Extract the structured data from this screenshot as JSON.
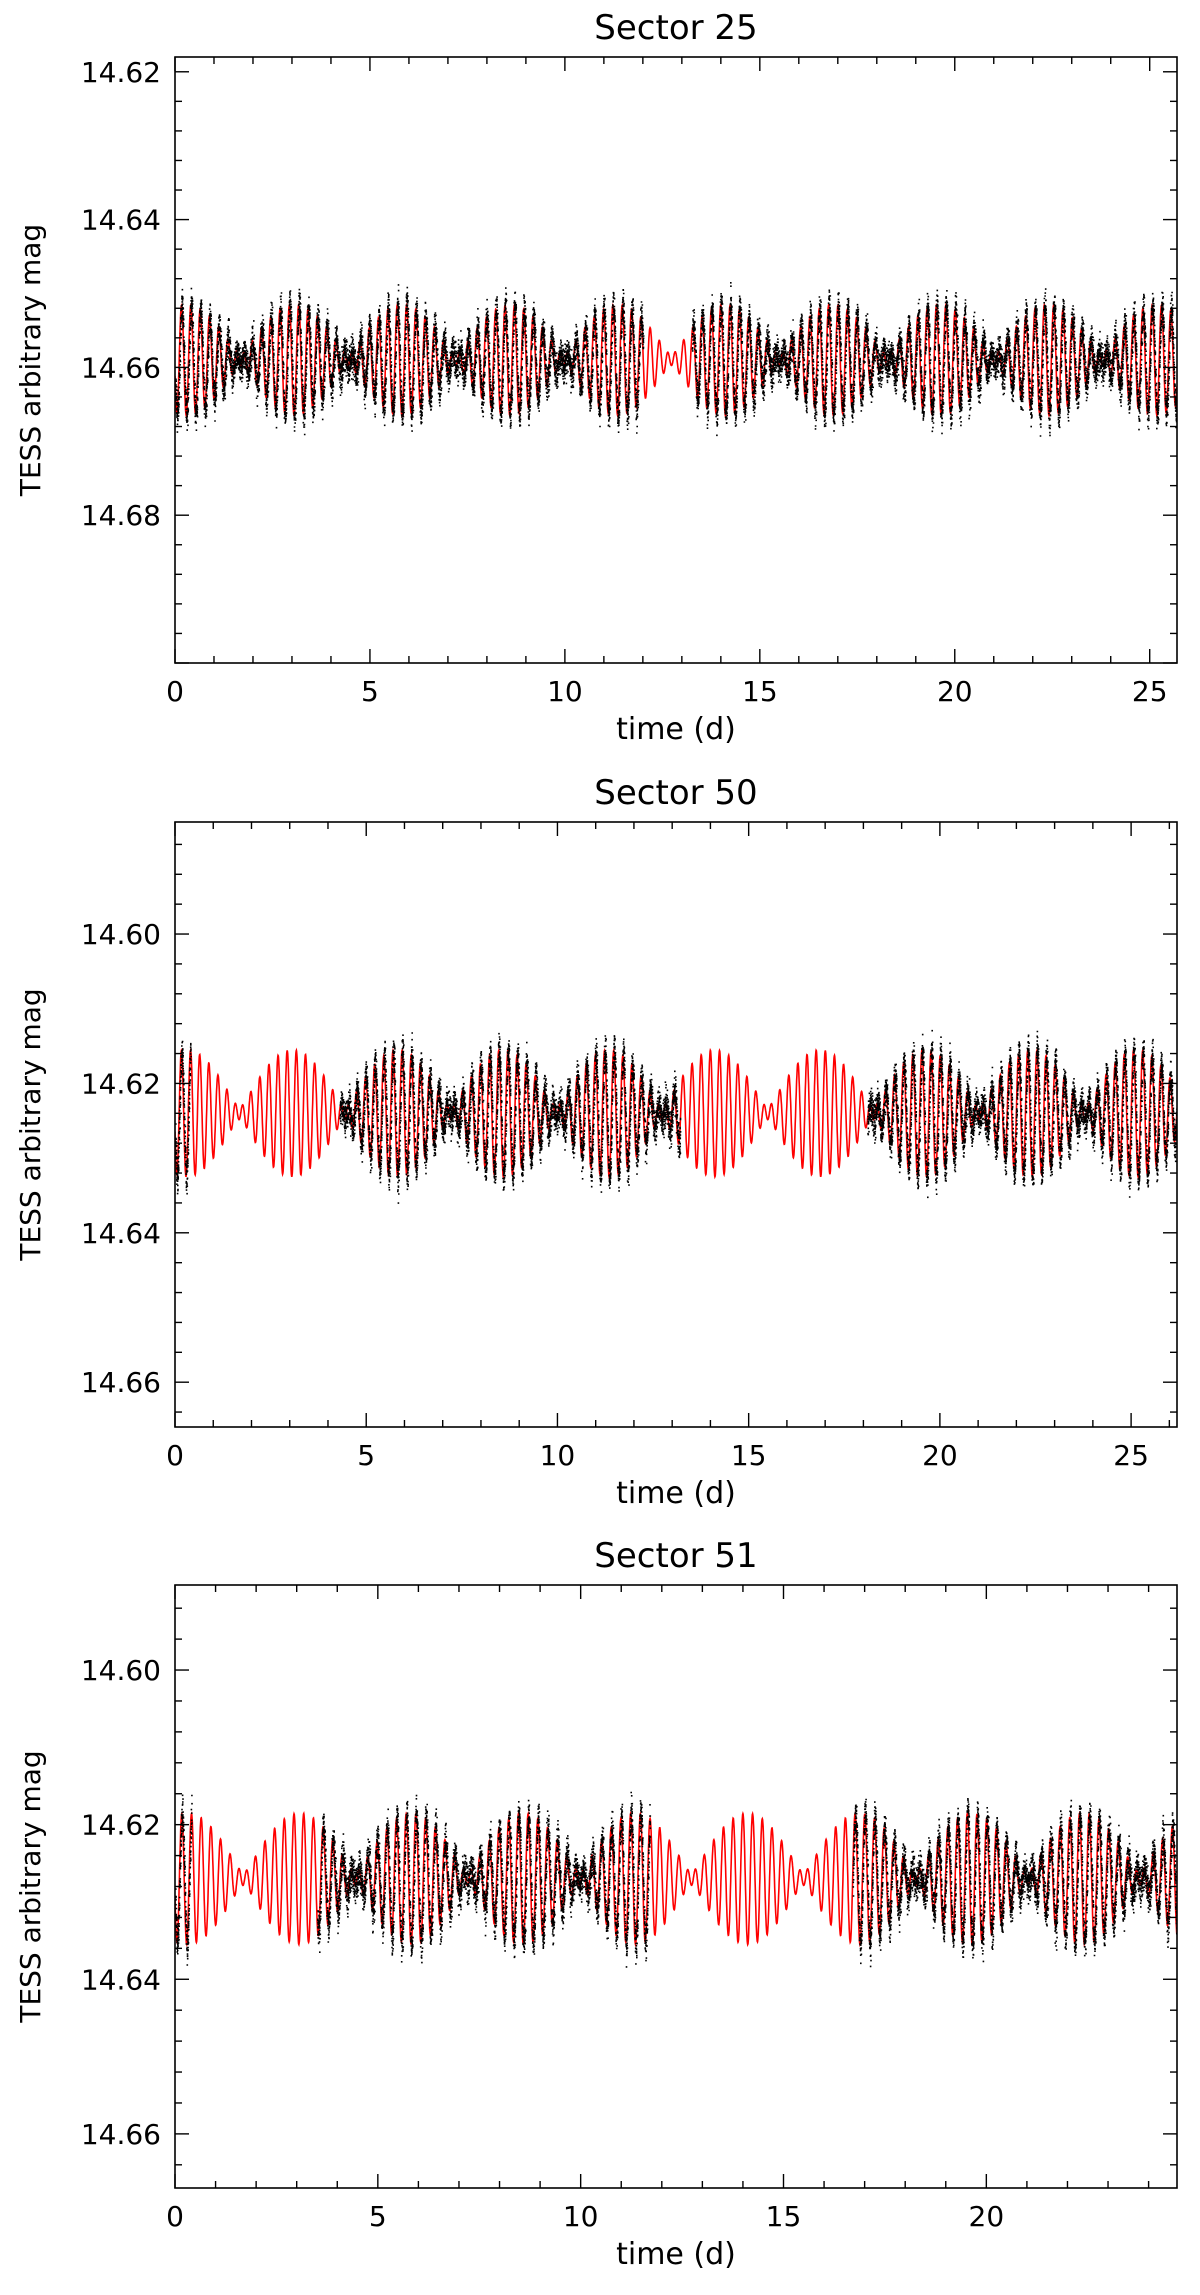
{
  "chart_data": [
    {
      "type": "scatter",
      "title": "Sector 25",
      "xlabel": "time (d)",
      "ylabel": "TESS arbitrary mag",
      "xlim": [
        0,
        25.7
      ],
      "ylim": [
        14.7,
        14.618
      ],
      "y_reversed": true,
      "x_ticks": [
        0,
        5,
        10,
        15,
        20,
        25
      ],
      "x_tick_labels": [
        "0",
        "5",
        "10",
        "15",
        "20",
        "25"
      ],
      "y_ticks": [
        14.62,
        14.64,
        14.66,
        14.68
      ],
      "y_tick_labels": [
        "14.62",
        "14.64",
        "14.66",
        "14.68"
      ],
      "grid": false,
      "series": [
        {
          "kind": "scatter",
          "color": "#000000",
          "segments": [
            [
              0,
              12.0
            ],
            [
              13.25,
              25.7
            ]
          ],
          "mean": 14.659,
          "amplitude": 0.0075,
          "noise": 0.0022
        },
        {
          "kind": "line",
          "color": "#ff0000",
          "x_range": [
            0,
            25.7
          ],
          "mean": 14.659,
          "amplitude": 0.0075
        }
      ]
    },
    {
      "type": "scatter",
      "title": "Sector 50",
      "xlabel": "time (d)",
      "ylabel": "TESS arbitrary mag",
      "xlim": [
        0,
        26.2
      ],
      "ylim": [
        14.666,
        14.585
      ],
      "y_reversed": true,
      "x_ticks": [
        0,
        5,
        10,
        15,
        20,
        25
      ],
      "x_tick_labels": [
        "0",
        "5",
        "10",
        "15",
        "20",
        "25"
      ],
      "y_ticks": [
        14.6,
        14.62,
        14.64,
        14.66
      ],
      "y_tick_labels": [
        "14.60",
        "14.62",
        "14.64",
        "14.66"
      ],
      "grid": false,
      "series": [
        {
          "kind": "scatter",
          "color": "#000000",
          "segments": [
            [
              0,
              0.4
            ],
            [
              4.3,
              13.2
            ],
            [
              18.1,
              26.2
            ]
          ],
          "mean": 14.624,
          "amplitude": 0.0085,
          "noise": 0.0022
        },
        {
          "kind": "line",
          "color": "#ff0000",
          "x_range": [
            0,
            26.2
          ],
          "mean": 14.624,
          "amplitude": 0.0085
        }
      ]
    },
    {
      "type": "scatter",
      "title": "Sector 51",
      "xlabel": "time (d)",
      "ylabel": "TESS arbitrary mag",
      "xlim": [
        0,
        24.7
      ],
      "ylim": [
        14.667,
        14.589
      ],
      "y_reversed": true,
      "x_ticks": [
        0,
        5,
        10,
        15,
        20
      ],
      "x_tick_labels": [
        "0",
        "5",
        "10",
        "15",
        "20"
      ],
      "y_ticks": [
        14.6,
        14.62,
        14.64,
        14.66
      ],
      "y_tick_labels": [
        "14.60",
        "14.62",
        "14.64",
        "14.66"
      ],
      "grid": false,
      "series": [
        {
          "kind": "scatter",
          "color": "#000000",
          "segments": [
            [
              0,
              0.4
            ],
            [
              3.5,
              11.7
            ],
            [
              16.7,
              24.7
            ]
          ],
          "mean": 14.627,
          "amplitude": 0.0085,
          "noise": 0.0022
        },
        {
          "kind": "line",
          "color": "#ff0000",
          "x_range": [
            0,
            24.7
          ],
          "mean": 14.627,
          "amplitude": 0.0085
        }
      ]
    }
  ]
}
